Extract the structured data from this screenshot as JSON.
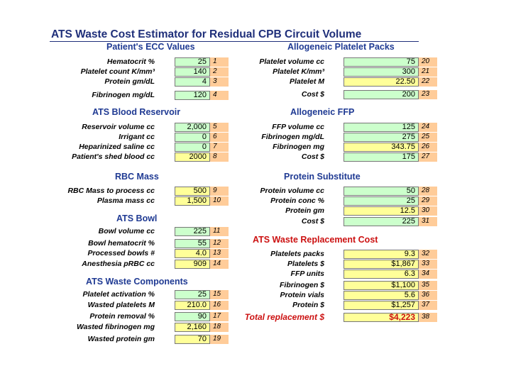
{
  "title": "ATS Waste Cost Estimator for Residual CPB Circuit Volume",
  "sections": {
    "ecc": "Patient's ECC Values",
    "reservoir": "ATS Blood Reservoir",
    "rbc": "RBC Mass",
    "bowl": "ATS Bowl",
    "waste": "ATS Waste Components",
    "platelets": "Allogeneic Platelet Packs",
    "ffp": "Allogeneic FFP",
    "protein": "Protein Substitute",
    "replacement": "ATS Waste Replacement Cost"
  },
  "rows": [
    {
      "label": "Hematocrit %",
      "value": "25",
      "num": "1",
      "color": "green"
    },
    {
      "label": "Platelet count K/mm³",
      "value": "140",
      "num": "2",
      "color": "green"
    },
    {
      "label": "Protein gm/dL",
      "value": "4",
      "num": "3",
      "color": "green"
    },
    {
      "label": "Fibrinogen mg/dL",
      "value": "120",
      "num": "4",
      "color": "green"
    },
    {
      "label": "Reservoir volume cc",
      "value": "2,000",
      "num": "5",
      "color": "green"
    },
    {
      "label": "Irrigant cc",
      "value": "0",
      "num": "6",
      "color": "green"
    },
    {
      "label": "Heparinized saline cc",
      "value": "0",
      "num": "7",
      "color": "green"
    },
    {
      "label": "Patient's shed blood cc",
      "value": "2000",
      "num": "8",
      "color": "yellow"
    },
    {
      "label": "RBC Mass to process cc",
      "value": "500",
      "num": "9",
      "color": "yellow"
    },
    {
      "label": "Plasma mass cc",
      "value": "1,500",
      "num": "10",
      "color": "yellow"
    },
    {
      "label": "Bowl volume cc",
      "value": "225",
      "num": "11",
      "color": "green"
    },
    {
      "label": "Bowl hematocrit %",
      "value": "55",
      "num": "12",
      "color": "green"
    },
    {
      "label": "Processed bowls #",
      "value": "4.0",
      "num": "13",
      "color": "yellow"
    },
    {
      "label": "Anesthesia pRBC cc",
      "value": "909",
      "num": "14",
      "color": "yellow"
    },
    {
      "label": "Platelet activation %",
      "value": "25",
      "num": "15",
      "color": "green"
    },
    {
      "label": "Wasted platelets M",
      "value": "210.0",
      "num": "16",
      "color": "yellow"
    },
    {
      "label": "Protein removal %",
      "value": "90",
      "num": "17",
      "color": "green"
    },
    {
      "label": "Wasted fibrinogen mg",
      "value": "2,160",
      "num": "18",
      "color": "yellow"
    },
    {
      "label": "Wasted protein gm",
      "value": "70",
      "num": "19",
      "color": "yellow"
    },
    {
      "label": "Platelet volume cc",
      "value": "75",
      "num": "20",
      "color": "green"
    },
    {
      "label": "Platelet K/mm³",
      "value": "300",
      "num": "21",
      "color": "green"
    },
    {
      "label": "Platelet M",
      "value": "22.50",
      "num": "22",
      "color": "yellow"
    },
    {
      "label": "Cost $",
      "value": "200",
      "num": "23",
      "color": "green"
    },
    {
      "label": "FFP volume cc",
      "value": "125",
      "num": "24",
      "color": "green"
    },
    {
      "label": "Fibrinogen mg/dL",
      "value": "275",
      "num": "25",
      "color": "green"
    },
    {
      "label": "Fibrinogen mg",
      "value": "343.75",
      "num": "26",
      "color": "yellow"
    },
    {
      "label": "Cost $",
      "value": "175",
      "num": "27",
      "color": "green"
    },
    {
      "label": "Protein volume cc",
      "value": "50",
      "num": "28",
      "color": "green"
    },
    {
      "label": "Protein conc %",
      "value": "25",
      "num": "29",
      "color": "green"
    },
    {
      "label": "Protein gm",
      "value": "12.5",
      "num": "30",
      "color": "yellow"
    },
    {
      "label": "Cost $",
      "value": "225",
      "num": "31",
      "color": "green"
    },
    {
      "label": "Platelets packs",
      "value": "9.3",
      "num": "32",
      "color": "yellow"
    },
    {
      "label": "Platelets $",
      "value": "$1,867",
      "num": "33",
      "color": "yellow"
    },
    {
      "label": "FFP units",
      "value": "6.3",
      "num": "34",
      "color": "yellow"
    },
    {
      "label": "Fibrinogen $",
      "value": "$1,100",
      "num": "35",
      "color": "yellow"
    },
    {
      "label": "Protein vials",
      "value": "5.6",
      "num": "36",
      "color": "yellow"
    },
    {
      "label": "Protein $",
      "value": "$1,257",
      "num": "37",
      "color": "yellow"
    },
    {
      "label": "Total replacement $",
      "value": "$4,223",
      "num": "38",
      "color": "yellow"
    }
  ],
  "colors": {
    "input_green": "#ccffcc",
    "calc_yellow": "#ffff99",
    "index_orange": "#ffcc99",
    "heading_blue": "#1f3a93",
    "accent_red": "#cc1111"
  }
}
